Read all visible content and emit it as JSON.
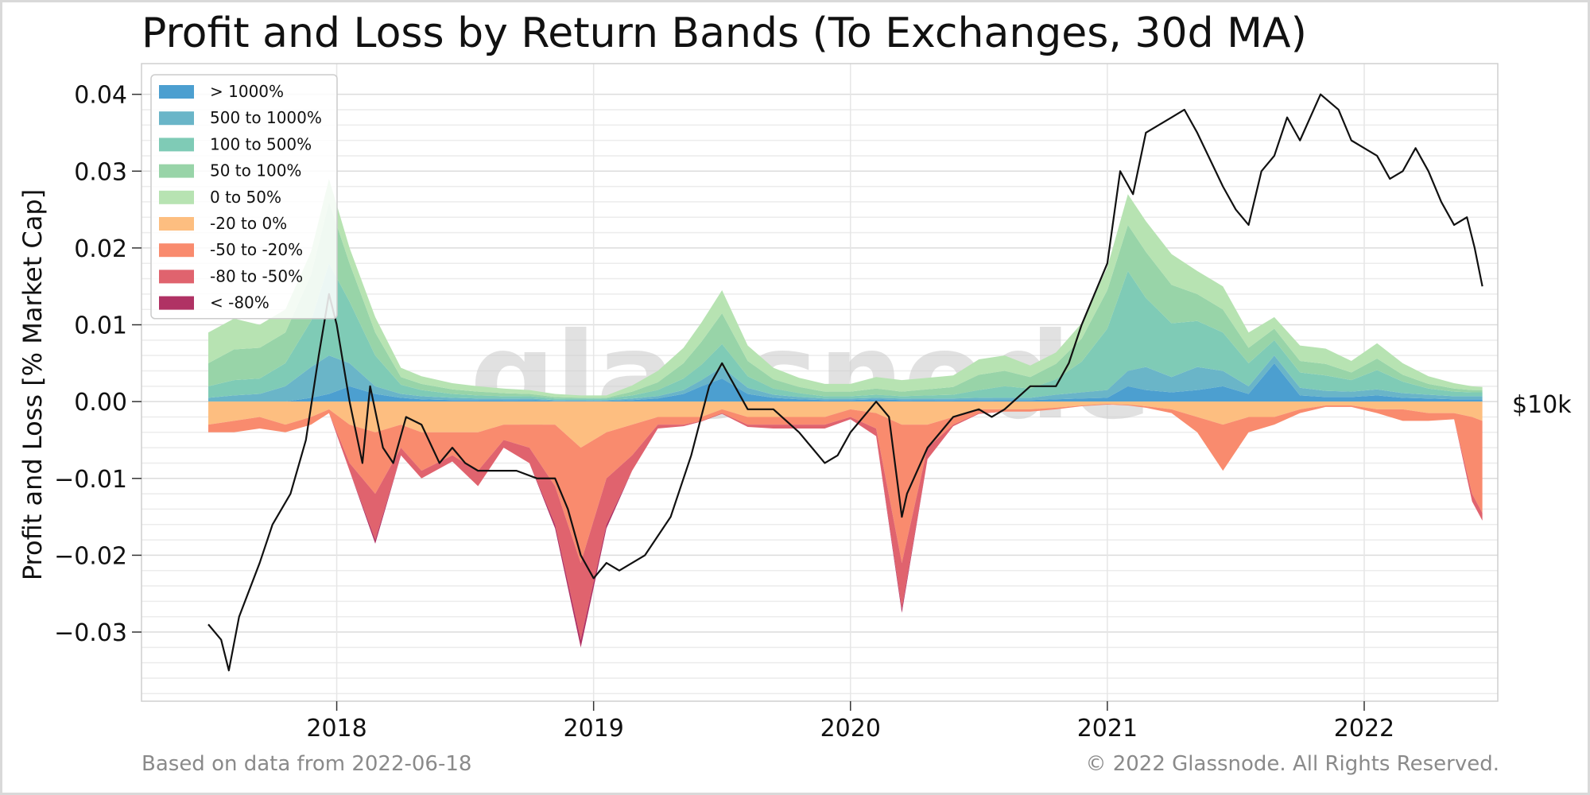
{
  "chart_data": {
    "type": "area",
    "title": "Profit and Loss by Return Bands (To Exchanges, 30d MA)",
    "ylabel": "Profit and Loss [% Market Cap]",
    "xlabel": "",
    "ylim": [
      -0.039,
      0.044
    ],
    "y_ticks": [
      {
        "value": 0.04,
        "label": "0.04"
      },
      {
        "value": 0.03,
        "label": "0.03"
      },
      {
        "value": 0.02,
        "label": "0.02"
      },
      {
        "value": 0.01,
        "label": "0.01"
      },
      {
        "value": 0.0,
        "label": "0.00"
      },
      {
        "value": -0.01,
        "label": "−0.01"
      },
      {
        "value": -0.02,
        "label": "−0.02"
      },
      {
        "value": -0.03,
        "label": "−0.03"
      }
    ],
    "x_ticks": [
      {
        "value": 2018.0,
        "label": "2018"
      },
      {
        "value": 2019.0,
        "label": "2019"
      },
      {
        "value": 2020.0,
        "label": "2020"
      },
      {
        "value": 2021.0,
        "label": "2021"
      },
      {
        "value": 2022.0,
        "label": "2022"
      }
    ],
    "xlim": [
      2017.24,
      2022.52
    ],
    "right_axis": {
      "label": "$10k",
      "scale": "log"
    },
    "grid": true,
    "legend_position": "top-left",
    "x": [
      2017.5,
      2017.6,
      2017.7,
      2017.8,
      2017.9,
      2017.97,
      2018.05,
      2018.15,
      2018.25,
      2018.33,
      2018.45,
      2018.55,
      2018.65,
      2018.75,
      2018.85,
      2018.95,
      2019.05,
      2019.15,
      2019.25,
      2019.35,
      2019.42,
      2019.5,
      2019.6,
      2019.7,
      2019.8,
      2019.9,
      2020.0,
      2020.1,
      2020.2,
      2020.3,
      2020.4,
      2020.5,
      2020.6,
      2020.7,
      2020.8,
      2020.9,
      2021.0,
      2021.08,
      2021.15,
      2021.25,
      2021.35,
      2021.45,
      2021.55,
      2021.65,
      2021.75,
      2021.85,
      2021.95,
      2022.05,
      2022.15,
      2022.25,
      2022.35,
      2022.42,
      2022.46
    ],
    "series": [
      {
        "name": "> 1000%",
        "color": "#4c9fd0",
        "values": [
          0,
          0,
          0,
          0,
          0.0005,
          0.001,
          0.002,
          0.001,
          0.0005,
          0.0003,
          0.0002,
          0.0002,
          0.0002,
          0.0002,
          0.0001,
          0.0001,
          0.0001,
          0.0002,
          0.0004,
          0.001,
          0.002,
          0.003,
          0.001,
          0.0005,
          0.0003,
          0.0002,
          0.0002,
          0.0003,
          0.0002,
          0.0002,
          0.0002,
          0.0002,
          0.0002,
          0.0002,
          0.0003,
          0.0004,
          0.0005,
          0.002,
          0.0015,
          0.0012,
          0.0015,
          0.002,
          0.001,
          0.005,
          0.0008,
          0.0006,
          0.0006,
          0.0008,
          0.0005,
          0.0004,
          0.0003,
          0.0003,
          0.0003
        ]
      },
      {
        "name": "500 to 1000%",
        "color": "#6ab5c8",
        "values": [
          0.0005,
          0.0008,
          0.001,
          0.002,
          0.004,
          0.005,
          0.003,
          0.001,
          0.0005,
          0.0004,
          0.0003,
          0.0002,
          0.0002,
          0.0002,
          0.0001,
          0.0001,
          0.0001,
          0.0002,
          0.0003,
          0.0005,
          0.0008,
          0.0015,
          0.0008,
          0.0004,
          0.0003,
          0.0002,
          0.0002,
          0.0002,
          0.0002,
          0.0002,
          0.0002,
          0.0003,
          0.0003,
          0.0003,
          0.0006,
          0.0008,
          0.001,
          0.002,
          0.003,
          0.002,
          0.003,
          0.002,
          0.001,
          0.001,
          0.001,
          0.0008,
          0.0007,
          0.0008,
          0.0006,
          0.0005,
          0.0004,
          0.0004,
          0.0004
        ]
      },
      {
        "name": "100 to 500%",
        "color": "#7fcbb6",
        "values": [
          0.0015,
          0.002,
          0.002,
          0.003,
          0.006,
          0.012,
          0.008,
          0.004,
          0.0012,
          0.0008,
          0.0005,
          0.0004,
          0.0003,
          0.0003,
          0.0002,
          0.0002,
          0.0002,
          0.0004,
          0.0008,
          0.0015,
          0.002,
          0.003,
          0.0015,
          0.0008,
          0.0005,
          0.0003,
          0.0003,
          0.0004,
          0.0003,
          0.0004,
          0.0005,
          0.001,
          0.0015,
          0.0012,
          0.002,
          0.004,
          0.008,
          0.013,
          0.009,
          0.007,
          0.006,
          0.005,
          0.003,
          0.002,
          0.002,
          0.002,
          0.0015,
          0.0025,
          0.0015,
          0.0008,
          0.0006,
          0.0005,
          0.0005
        ]
      },
      {
        "name": "50 to 100%",
        "color": "#98d4a8",
        "values": [
          0.003,
          0.004,
          0.004,
          0.004,
          0.006,
          0.008,
          0.005,
          0.003,
          0.001,
          0.0008,
          0.0006,
          0.0005,
          0.0004,
          0.0003,
          0.0002,
          0.0001,
          0.0001,
          0.0005,
          0.001,
          0.002,
          0.003,
          0.004,
          0.002,
          0.0012,
          0.0008,
          0.0006,
          0.0006,
          0.0008,
          0.0006,
          0.0008,
          0.001,
          0.002,
          0.002,
          0.0015,
          0.002,
          0.003,
          0.005,
          0.006,
          0.006,
          0.005,
          0.0035,
          0.003,
          0.002,
          0.0015,
          0.0015,
          0.0015,
          0.001,
          0.0015,
          0.0009,
          0.0006,
          0.0004,
          0.0003,
          0.0003
        ]
      },
      {
        "name": "0 to 50%",
        "color": "#b7e3b2",
        "values": [
          0.004,
          0.004,
          0.003,
          0.003,
          0.003,
          0.003,
          0.002,
          0.002,
          0.0012,
          0.001,
          0.0008,
          0.0007,
          0.0006,
          0.0005,
          0.0004,
          0.0003,
          0.0003,
          0.0008,
          0.0015,
          0.002,
          0.0025,
          0.003,
          0.002,
          0.0015,
          0.0012,
          0.001,
          0.001,
          0.0015,
          0.0015,
          0.0015,
          0.0015,
          0.002,
          0.002,
          0.0015,
          0.0015,
          0.002,
          0.003,
          0.004,
          0.004,
          0.004,
          0.003,
          0.003,
          0.002,
          0.0015,
          0.002,
          0.002,
          0.0015,
          0.002,
          0.0015,
          0.001,
          0.0007,
          0.0005,
          0.0004
        ]
      },
      {
        "name": "-20 to 0%",
        "color": "#fdbe80",
        "values": [
          -0.003,
          -0.0025,
          -0.002,
          -0.003,
          -0.002,
          -0.001,
          -0.003,
          -0.004,
          -0.003,
          -0.004,
          -0.004,
          -0.004,
          -0.003,
          -0.003,
          -0.003,
          -0.006,
          -0.004,
          -0.003,
          -0.002,
          -0.002,
          -0.002,
          -0.001,
          -0.002,
          -0.002,
          -0.002,
          -0.002,
          -0.001,
          -0.0015,
          -0.003,
          -0.003,
          -0.002,
          -0.001,
          -0.001,
          -0.001,
          -0.0008,
          -0.0005,
          -0.0003,
          -0.0004,
          -0.0006,
          -0.001,
          -0.002,
          -0.003,
          -0.002,
          -0.002,
          -0.001,
          -0.0005,
          -0.0005,
          -0.001,
          -0.001,
          -0.0015,
          -0.0015,
          -0.002,
          -0.0025
        ]
      },
      {
        "name": "-50 to -20%",
        "color": "#f98b6e",
        "values": [
          -0.001,
          -0.0015,
          -0.0015,
          -0.001,
          -0.001,
          -0.0005,
          -0.005,
          -0.008,
          -0.003,
          -0.005,
          -0.003,
          -0.005,
          -0.002,
          -0.003,
          -0.008,
          -0.015,
          -0.006,
          -0.004,
          -0.001,
          -0.001,
          -0.0005,
          -0.0005,
          -0.001,
          -0.001,
          -0.001,
          -0.001,
          -0.001,
          -0.002,
          -0.018,
          -0.003,
          -0.001,
          -0.0005,
          -0.0003,
          -0.0003,
          -0.0002,
          -0.0001,
          -0.0001,
          -0.0001,
          -0.0002,
          -0.0005,
          -0.002,
          -0.006,
          -0.002,
          -0.001,
          -0.0005,
          -0.0002,
          -0.0002,
          -0.0005,
          -0.0015,
          -0.001,
          -0.0008,
          -0.01,
          -0.012
        ]
      },
      {
        "name": "-80 to -50%",
        "color": "#e0636e",
        "values": [
          0,
          0,
          0,
          0,
          0,
          0,
          -0.001,
          -0.006,
          -0.001,
          -0.001,
          -0.0008,
          -0.002,
          -0.001,
          -0.002,
          -0.005,
          -0.01,
          -0.006,
          -0.002,
          -0.0005,
          -0.0002,
          -0.0001,
          -0.0001,
          -0.0003,
          -0.0005,
          -0.0005,
          -0.0005,
          -0.0003,
          -0.001,
          -0.006,
          -0.0015,
          -0.0002,
          -0.0001,
          0,
          0,
          0,
          0,
          0,
          0,
          0,
          0,
          0,
          0,
          0,
          0,
          0,
          0,
          0,
          0,
          0,
          0,
          0,
          -0.001,
          -0.001
        ]
      },
      {
        "name": "< -80%",
        "color": "#b03264",
        "values": [
          0,
          0,
          0,
          0,
          0,
          0,
          0,
          -0.0005,
          0,
          0,
          0,
          0,
          0,
          0,
          -0.0005,
          -0.001,
          -0.0005,
          0,
          0,
          0,
          0,
          0,
          0,
          0,
          0,
          0,
          0,
          0,
          -0.0005,
          0,
          0,
          0,
          0,
          0,
          0,
          0,
          0,
          0,
          0,
          0,
          0,
          0,
          0,
          0,
          0,
          0,
          0,
          0,
          0,
          0,
          0,
          0,
          0
        ]
      }
    ],
    "price_line": {
      "color": "#111111",
      "x": [
        2017.5,
        2017.55,
        2017.58,
        2017.62,
        2017.7,
        2017.75,
        2017.82,
        2017.88,
        2017.93,
        2017.97,
        2018.0,
        2018.05,
        2018.1,
        2018.13,
        2018.18,
        2018.22,
        2018.27,
        2018.33,
        2018.4,
        2018.45,
        2018.5,
        2018.55,
        2018.6,
        2018.65,
        2018.7,
        2018.78,
        2018.85,
        2018.9,
        2018.95,
        2019.0,
        2019.05,
        2019.1,
        2019.2,
        2019.3,
        2019.38,
        2019.45,
        2019.5,
        2019.55,
        2019.6,
        2019.7,
        2019.8,
        2019.85,
        2019.9,
        2019.95,
        2020.0,
        2020.1,
        2020.15,
        2020.2,
        2020.22,
        2020.3,
        2020.4,
        2020.5,
        2020.55,
        2020.6,
        2020.7,
        2020.8,
        2020.85,
        2020.9,
        2020.95,
        2021.0,
        2021.05,
        2021.1,
        2021.15,
        2021.25,
        2021.3,
        2021.35,
        2021.45,
        2021.5,
        2021.55,
        2021.6,
        2021.65,
        2021.7,
        2021.75,
        2021.83,
        2021.9,
        2021.95,
        2022.0,
        2022.05,
        2022.1,
        2022.15,
        2022.2,
        2022.25,
        2022.3,
        2022.35,
        2022.4,
        2022.43,
        2022.46
      ],
      "y": [
        -0.029,
        -0.031,
        -0.035,
        -0.028,
        -0.021,
        -0.016,
        -0.012,
        -0.005,
        0.006,
        0.014,
        0.01,
        0.0,
        -0.008,
        0.002,
        -0.006,
        -0.008,
        -0.002,
        -0.003,
        -0.008,
        -0.006,
        -0.008,
        -0.009,
        -0.009,
        -0.009,
        -0.009,
        -0.01,
        -0.01,
        -0.014,
        -0.02,
        -0.023,
        -0.021,
        -0.022,
        -0.02,
        -0.015,
        -0.007,
        0.002,
        0.005,
        0.002,
        -0.001,
        -0.001,
        -0.004,
        -0.006,
        -0.008,
        -0.007,
        -0.004,
        0.0,
        -0.002,
        -0.015,
        -0.012,
        -0.006,
        -0.002,
        -0.001,
        -0.002,
        -0.001,
        0.002,
        0.002,
        0.005,
        0.01,
        0.014,
        0.018,
        0.03,
        0.027,
        0.035,
        0.037,
        0.038,
        0.035,
        0.028,
        0.025,
        0.023,
        0.03,
        0.032,
        0.037,
        0.034,
        0.04,
        0.038,
        0.034,
        0.033,
        0.032,
        0.029,
        0.03,
        0.033,
        0.03,
        0.026,
        0.023,
        0.024,
        0.02,
        0.015
      ]
    },
    "watermark": "glassnode"
  },
  "footer": {
    "left": "Based on data from 2022-06-18",
    "right": "© 2022 Glassnode. All Rights Reserved."
  }
}
